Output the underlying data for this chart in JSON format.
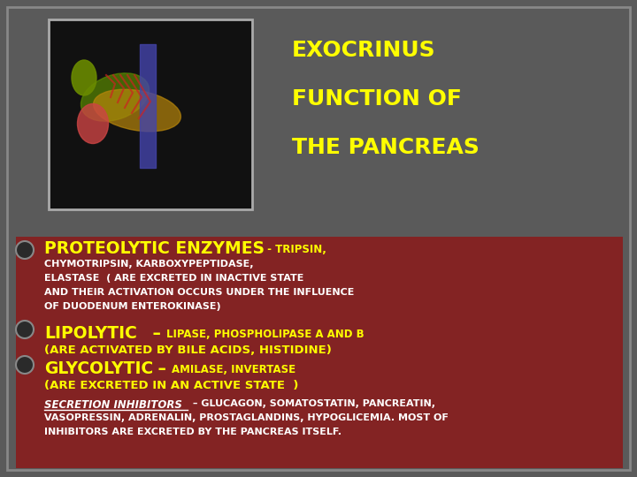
{
  "bg_color": "#5a5a5a",
  "border_color": "#888888",
  "red_box_color": "#8B1A1A",
  "title_lines": [
    "EXOCRINUS",
    "FUNCTION OF",
    "THE PANCREAS"
  ],
  "title_color": "#FFFF00",
  "title_fontsize": 18,
  "bullet_color": "#2a2a2a",
  "bullet_outline": "#888888",
  "proteolytic_big": "PROTEOLYTIC ENZYMES",
  "proteolytic_dash": " - ",
  "proteolytic_small": "TRIPSIN,",
  "proteolytic_small2": "CHYMOTRIPSIN, KARBOXYPEPTIDASE,",
  "proteolytic_small3": "ELASTASE  ( ARE EXCRETED IN INACTIVE STATE",
  "proteolytic_small4": "AND THEIR ACTIVATION OCCURS UNDER THE INFLUENCE",
  "proteolytic_small5": "OF DUODENUM ENTEROKINASE)",
  "lipolytic_big": "LIPOLYTIC",
  "lipolytic_dash": " – ",
  "lipolytic_small": "LIPASE, PHOSPHOLIPASE A AND B",
  "lipolytic_small2": "(ARE ACTIVATED BY BILE ACIDS, HISTIDINE)",
  "glycolytic_big": "GLYCOLYTIC",
  "glycolytic_dash": " – ",
  "glycolytic_small": "AMILASE, INVERTASE",
  "glycolytic_small2": "(ARE EXCRETED IN AN ACTIVE STATE  )",
  "secretion_title": "SECRETION INHIBITORS",
  "secretion_dash": " – ",
  "secretion_text1": "GLUCAGON, SOMATOSTATIN, PANCREATIN,",
  "secretion_text2": "VASOPRESSIN, ADRENALIN, PROSTAGLANDINS, HYPOGLICEMIA. MOST OF",
  "secretion_text3": "INHIBITORS ARE EXCRETED BY THE PANCREAS ITSELF.",
  "text_color_yellow": "#FFFF00",
  "text_color_white": "#FFFFFF"
}
